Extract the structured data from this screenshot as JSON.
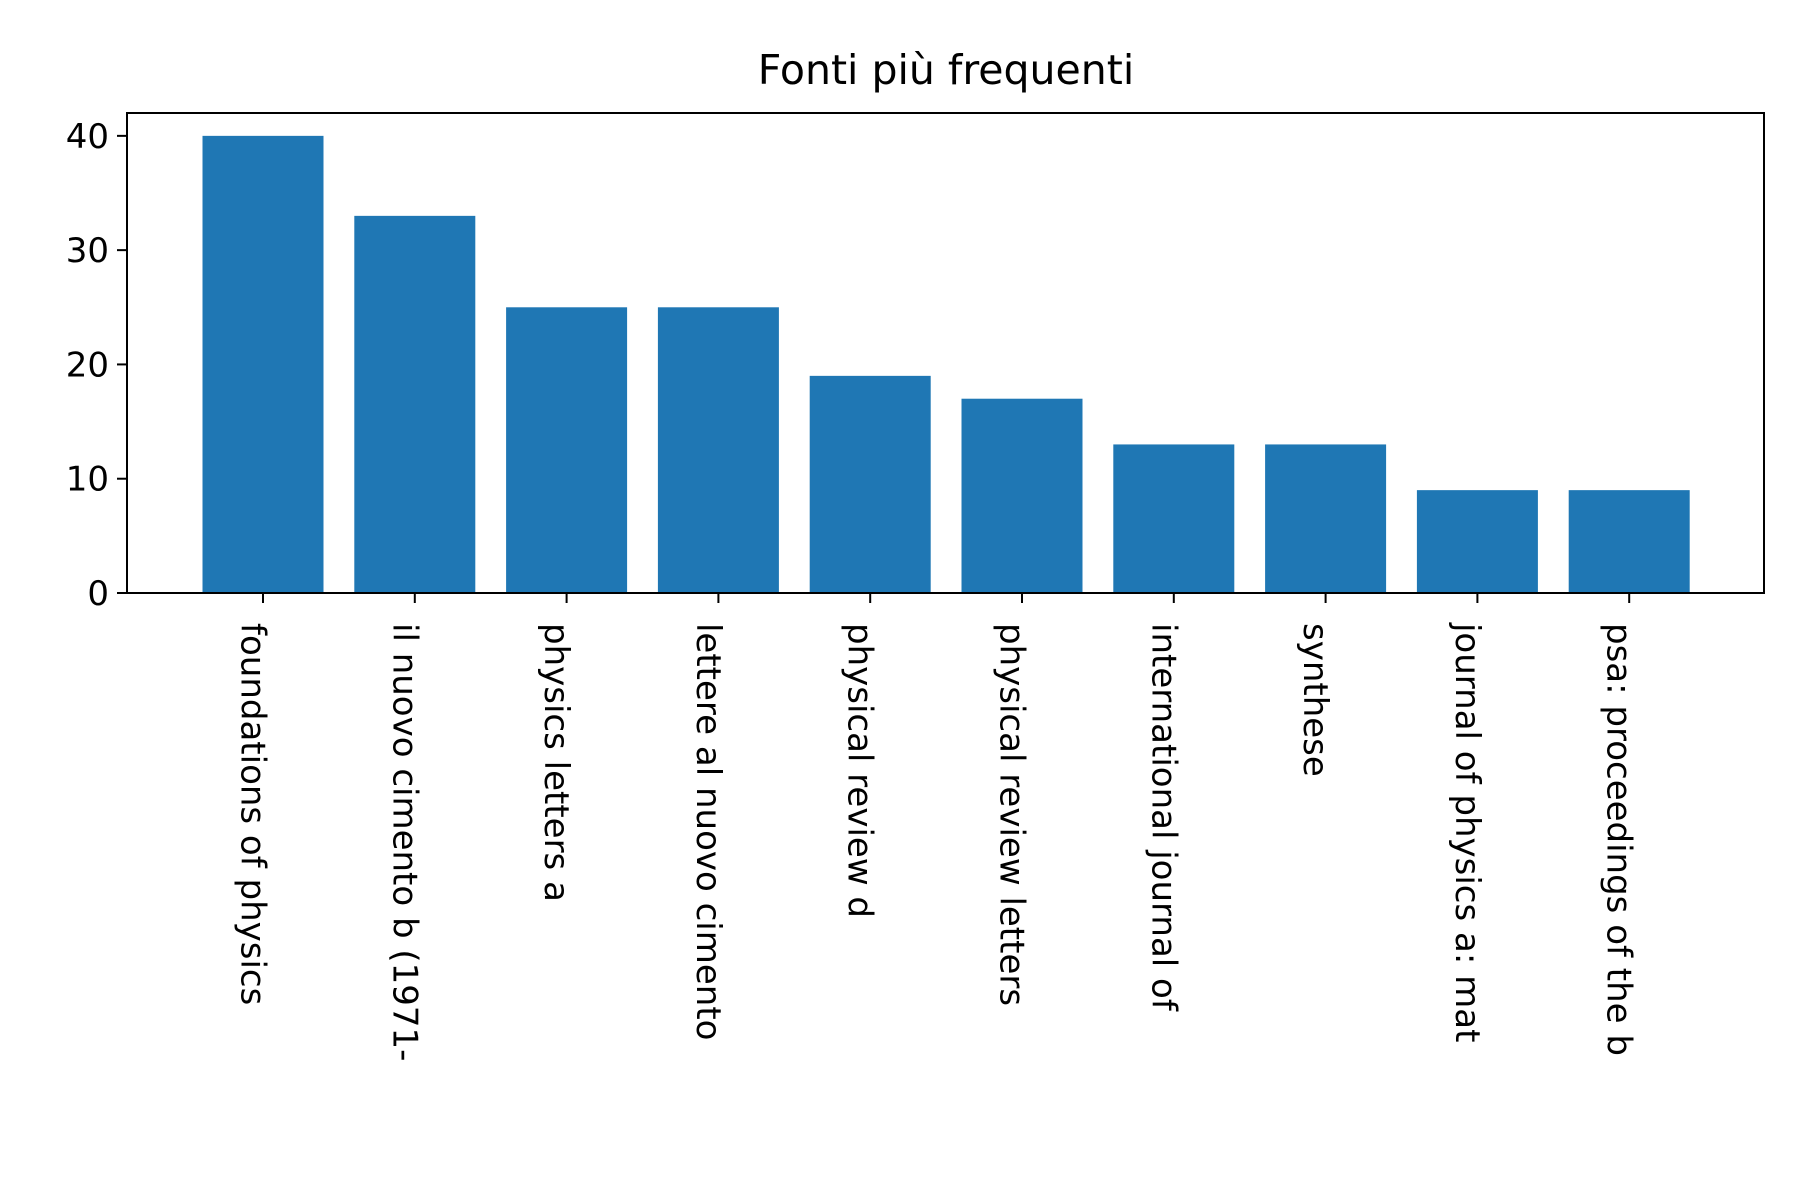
{
  "chart_data": {
    "type": "bar",
    "title": "Fonti più frequenti",
    "xlabel": "",
    "ylabel": "",
    "categories": [
      "foundations of physics",
      "il nuovo cimento b (1971-",
      "physics letters a",
      "lettere al nuovo cimento",
      "physical review d",
      "physical review letters",
      "international journal of",
      "synthese",
      "journal of physics a: mat",
      "psa: proceedings of the b"
    ],
    "values": [
      40,
      33,
      25,
      25,
      19,
      17,
      13,
      13,
      9,
      9
    ],
    "ylim": [
      0,
      42
    ],
    "yticks": [
      0,
      10,
      20,
      30,
      40
    ],
    "ytick_labels": [
      "0",
      "10",
      "20",
      "30",
      "40"
    ],
    "grid": false,
    "bar_color": "#1f77b4"
  }
}
